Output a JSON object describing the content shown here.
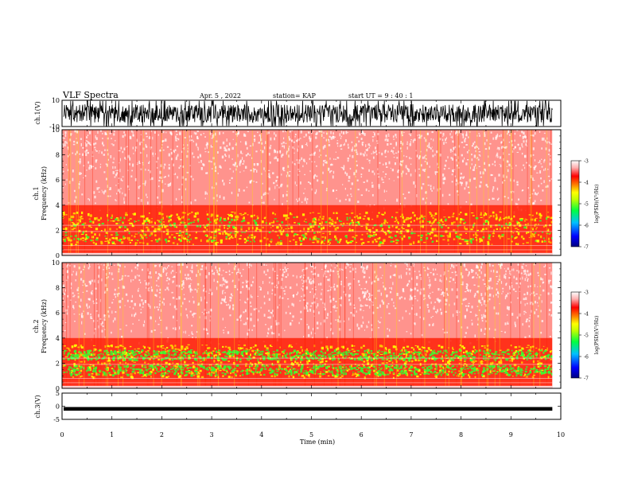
{
  "header": {
    "title": "VLF Spectra",
    "date": "Apr. 5 , 2022",
    "station": "station= KAP",
    "start": "start  UT =   9 : 40 : 1"
  },
  "colors": {
    "waveform": "#000000",
    "colormap": [
      "#000080",
      "#0000ff",
      "#00c0ff",
      "#00ff40",
      "#c0ff00",
      "#ffff00",
      "#ff8000",
      "#ff0000",
      "#ffb0b0",
      "#ffffff"
    ]
  },
  "chart_data": [
    {
      "type": "line",
      "panel": "ch1-waveform",
      "ylabel": "ch.1(V)",
      "ylim": [
        -10,
        10
      ],
      "yticks": [
        "10",
        "-10"
      ],
      "xlim": [
        0,
        10
      ]
    },
    {
      "type": "heatmap",
      "panel": "ch1-spectrogram",
      "ylabel_top": "ch.1",
      "ylabel": "Frequency  (kHz)",
      "ylim": [
        0,
        10
      ],
      "yticks": [
        "0",
        "2",
        "4",
        "6",
        "8",
        "10"
      ],
      "xlim": [
        0,
        10
      ],
      "colorbar": {
        "label": "log(PSD)(V²/Hz)",
        "range": [
          -7,
          -3
        ],
        "ticks": [
          "-3",
          "-4",
          "-5",
          "-6",
          "-7"
        ]
      }
    },
    {
      "type": "heatmap",
      "panel": "ch2-spectrogram",
      "ylabel_top": "ch.2",
      "ylabel": "Frequency  (kHz)",
      "ylim": [
        0,
        10
      ],
      "yticks": [
        "0",
        "2",
        "4",
        "6",
        "8",
        "10"
      ],
      "xlim": [
        0,
        10
      ],
      "colorbar": {
        "label": "log(PSD)(V²/Hz)",
        "range": [
          -7,
          -3
        ],
        "ticks": [
          "-3",
          "-4",
          "-5",
          "-6",
          "-7"
        ]
      }
    },
    {
      "type": "line",
      "panel": "ch3-waveform",
      "ylabel": "ch.3(V)",
      "ylim": [
        -5,
        5
      ],
      "yticks": [
        "5",
        "0",
        "-5"
      ],
      "xlim": [
        0,
        10
      ],
      "xlabel": "Time  (min)",
      "xticks": [
        "0",
        "1",
        "2",
        "3",
        "4",
        "5",
        "6",
        "7",
        "8",
        "9",
        "10"
      ]
    }
  ]
}
